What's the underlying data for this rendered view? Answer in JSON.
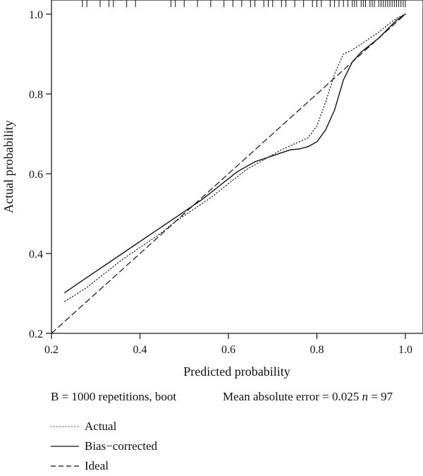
{
  "chart_data": {
    "type": "line",
    "xlabel": "Predicted probability",
    "ylabel": "Actual probability",
    "xlim": [
      0.2,
      1.0
    ],
    "ylim": [
      0.2,
      1.0
    ],
    "x_ticks": [
      "0.2",
      "0.4",
      "0.6",
      "0.8",
      "1.0"
    ],
    "y_ticks": [
      "0.2",
      "0.4",
      "0.6",
      "0.8",
      "1.0"
    ],
    "grid": false,
    "legend_position": "bottom-left",
    "series": [
      {
        "name": "Actual",
        "style": "dotted",
        "x": [
          0.23,
          0.28,
          0.32,
          0.36,
          0.4,
          0.44,
          0.48,
          0.52,
          0.56,
          0.6,
          0.64,
          0.68,
          0.72,
          0.76,
          0.78,
          0.8,
          0.82,
          0.84,
          0.86,
          0.88,
          0.9,
          0.94,
          0.98,
          1.0
        ],
        "y": [
          0.28,
          0.315,
          0.35,
          0.385,
          0.415,
          0.445,
          0.48,
          0.51,
          0.54,
          0.575,
          0.61,
          0.635,
          0.66,
          0.68,
          0.69,
          0.72,
          0.78,
          0.85,
          0.9,
          0.91,
          0.925,
          0.955,
          0.99,
          1.0
        ]
      },
      {
        "name": "Bias−corrected",
        "style": "solid",
        "x": [
          0.23,
          0.26,
          0.3,
          0.34,
          0.38,
          0.42,
          0.46,
          0.5,
          0.54,
          0.58,
          0.62,
          0.66,
          0.7,
          0.74,
          0.76,
          0.78,
          0.8,
          0.82,
          0.84,
          0.86,
          0.88,
          0.9,
          0.94,
          0.98,
          1.0
        ],
        "y": [
          0.302,
          0.325,
          0.355,
          0.385,
          0.415,
          0.445,
          0.475,
          0.505,
          0.535,
          0.57,
          0.605,
          0.63,
          0.645,
          0.66,
          0.662,
          0.668,
          0.68,
          0.71,
          0.76,
          0.835,
          0.88,
          0.905,
          0.94,
          0.985,
          1.0
        ]
      },
      {
        "name": "Ideal",
        "style": "dashed",
        "x": [
          0.2,
          1.0
        ],
        "y": [
          0.2,
          1.0
        ]
      }
    ],
    "rug_x": [
      0.27,
      0.28,
      0.31,
      0.33,
      0.34,
      0.37,
      0.39,
      0.47,
      0.48,
      0.5,
      0.53,
      0.56,
      0.59,
      0.61,
      0.63,
      0.65,
      0.66,
      0.68,
      0.69,
      0.7,
      0.72,
      0.73,
      0.75,
      0.77,
      0.79,
      0.8,
      0.81,
      0.83,
      0.84,
      0.85,
      0.86,
      0.87,
      0.88,
      0.885,
      0.89,
      0.9,
      0.905,
      0.91,
      0.92,
      0.925,
      0.93,
      0.94,
      0.945,
      0.95,
      0.955,
      0.96,
      0.965,
      0.97,
      0.975,
      0.98,
      0.985,
      0.99,
      0.995,
      1.0
    ]
  },
  "notes": {
    "left": "B = 1000 repetitions, boot",
    "right_prefix": "Mean absolute error = 0.025 ",
    "n_label": "n",
    "right_suffix": " = 97"
  },
  "legend": [
    {
      "label": "Actual",
      "style": "dotted"
    },
    {
      "label": "Bias−corrected",
      "style": "solid"
    },
    {
      "label": "Ideal",
      "style": "dashed"
    }
  ]
}
